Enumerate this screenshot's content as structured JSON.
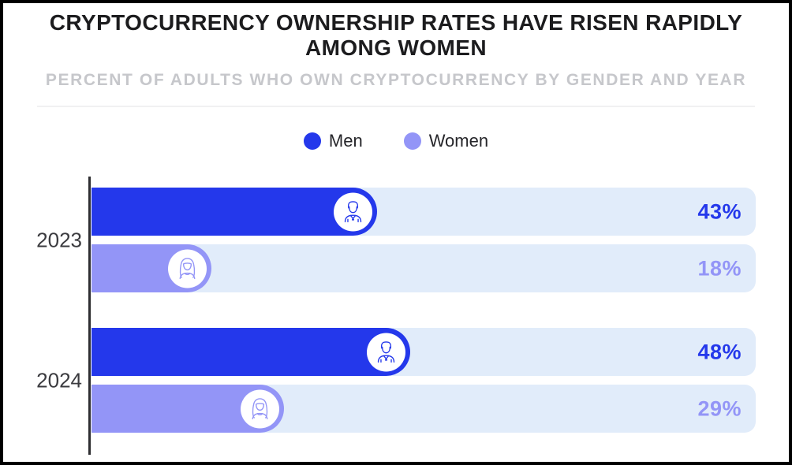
{
  "header": {
    "title": "CRYPTOCURRENCY OWNERSHIP RATES HAVE RISEN RAPIDLY AMONG WOMEN",
    "subtitle": "PERCENT OF ADULTS WHO OWN CRYPTOCURRENCY BY GENDER AND YEAR"
  },
  "chart_data": {
    "type": "bar",
    "orientation": "horizontal",
    "title": "CRYPTOCURRENCY OWNERSHIP RATES HAVE RISEN RAPIDLY AMONG WOMEN",
    "subtitle": "PERCENT OF ADULTS WHO OWN CRYPTOCURRENCY BY GENDER AND YEAR",
    "categories": [
      "2023",
      "2024"
    ],
    "series": [
      {
        "name": "Men",
        "values": [
          43,
          48
        ],
        "color": "#2438eb",
        "icon": "man-icon"
      },
      {
        "name": "Women",
        "values": [
          18,
          29
        ],
        "color": "#9395f7",
        "icon": "woman-icon"
      }
    ],
    "value_labels": [
      [
        "43%",
        "48%"
      ],
      [
        "18%",
        "29%"
      ]
    ],
    "xlim": [
      0,
      100
    ],
    "grid": false,
    "legend_position": "top-center",
    "track_color": "#e1ecfa",
    "axis_color": "#2e2e31",
    "year_label_color": "#3b3b3f"
  }
}
